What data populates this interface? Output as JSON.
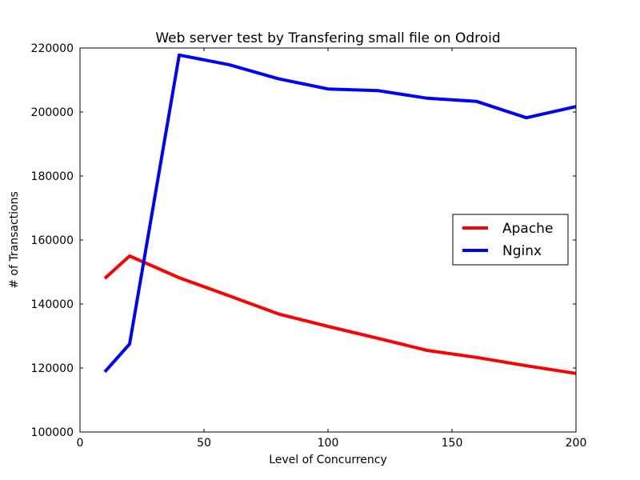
{
  "chart_data": {
    "type": "line",
    "title": "Web server test by Transfering small file on Odroid",
    "xlabel": "Level of Concurrency",
    "ylabel": "# of Transactions",
    "xlim": [
      0,
      200
    ],
    "ylim": [
      100000,
      220000
    ],
    "xticks": [
      0,
      50,
      100,
      150,
      200
    ],
    "yticks": [
      100000,
      120000,
      140000,
      160000,
      180000,
      200000,
      220000
    ],
    "grid": false,
    "legend_position": "center-right",
    "series": [
      {
        "name": "Apache",
        "color": "#ff0000",
        "x": [
          10,
          20,
          40,
          60,
          80,
          100,
          120,
          140,
          160,
          180,
          200
        ],
        "y": [
          148000,
          155000,
          148200,
          142600,
          136900,
          133000,
          129300,
          125500,
          123300,
          120700,
          118300
        ]
      },
      {
        "name": "Nginx",
        "color": "#0000ff",
        "x": [
          10,
          20,
          40,
          60,
          80,
          100,
          120,
          140,
          160,
          180,
          200
        ],
        "y": [
          118800,
          127500,
          217800,
          214800,
          210400,
          207200,
          206700,
          204300,
          203300,
          198200,
          201700
        ]
      }
    ]
  }
}
